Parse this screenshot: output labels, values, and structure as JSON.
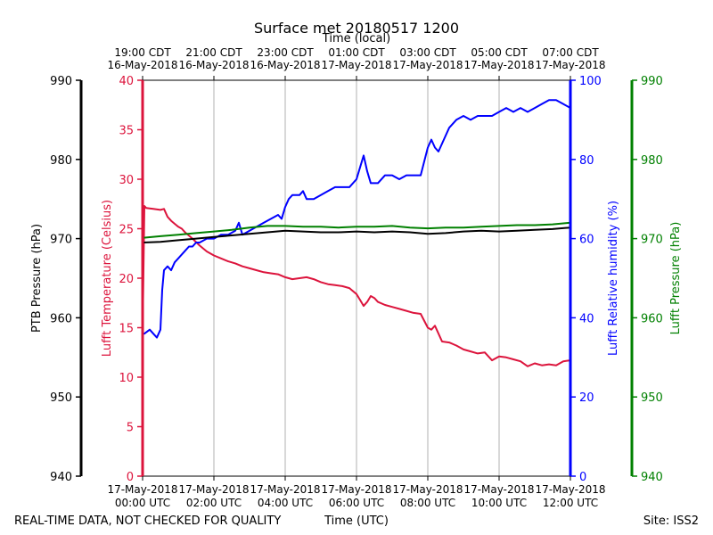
{
  "chart_data": {
    "type": "line",
    "title": "Surface met 20180517 1200",
    "top_axis_label": "Time (local)",
    "top_ticks": [
      {
        "x": 0,
        "line1": "19:00 CDT",
        "line2": "16-May-2018"
      },
      {
        "x": 2,
        "line1": "21:00 CDT",
        "line2": "16-May-2018"
      },
      {
        "x": 4,
        "line1": "23:00 CDT",
        "line2": "16-May-2018"
      },
      {
        "x": 6,
        "line1": "01:00 CDT",
        "line2": "17-May-2018"
      },
      {
        "x": 8,
        "line1": "03:00 CDT",
        "line2": "17-May-2018"
      },
      {
        "x": 10,
        "line1": "05:00 CDT",
        "line2": "17-May-2018"
      },
      {
        "x": 12,
        "line1": "07:00 CDT",
        "line2": "17-May-2018"
      }
    ],
    "bottom_ticks": [
      {
        "x": 0,
        "line1": "17-May-2018",
        "line2": "00:00 UTC"
      },
      {
        "x": 2,
        "line1": "17-May-2018",
        "line2": "02:00 UTC"
      },
      {
        "x": 4,
        "line1": "17-May-2018",
        "line2": "04:00 UTC"
      },
      {
        "x": 6,
        "line1": "17-May-2018",
        "line2": "06:00 UTC"
      },
      {
        "x": 8,
        "line1": "17-May-2018",
        "line2": "08:00 UTC"
      },
      {
        "x": 10,
        "line1": "17-May-2018",
        "line2": "10:00 UTC"
      },
      {
        "x": 12,
        "line1": "17-May-2018",
        "line2": "12:00 UTC"
      }
    ],
    "xlabel": "Time (UTC)",
    "xlim": [
      0,
      12
    ],
    "footer_left": "REAL-TIME DATA, NOT CHECKED FOR QUALITY",
    "footer_right": "Site: ISS2",
    "grid": "vertical",
    "axes": {
      "ptb": {
        "label": "PTB Pressure (hPa)",
        "color": "#000000",
        "ylim": [
          940,
          990
        ],
        "ticks": [
          "940",
          "950",
          "960",
          "970",
          "980",
          "990"
        ]
      },
      "temp": {
        "label": "Lufft Temperature (Celsius)",
        "color": "#dc143c",
        "ylim": [
          0,
          40
        ],
        "ticks": [
          "0",
          "5",
          "10",
          "15",
          "20",
          "25",
          "30",
          "35",
          "40"
        ]
      },
      "rh": {
        "label": "Lufft Relative humidity (%)",
        "color": "#0000ff",
        "ylim": [
          0,
          100
        ],
        "ticks": [
          "0",
          "20",
          "40",
          "60",
          "80",
          "100"
        ]
      },
      "lufft_p": {
        "label": "Lufft Pressure (hPa)",
        "color": "#008000",
        "ylim": [
          940,
          990
        ],
        "ticks": [
          "940",
          "950",
          "960",
          "970",
          "980",
          "990"
        ]
      }
    },
    "series": [
      {
        "name": "Lufft Temperature",
        "axis": "temp",
        "color": "#dc143c",
        "x": [
          0,
          0.05,
          0.1,
          0.3,
          0.5,
          0.6,
          0.7,
          0.8,
          0.9,
          1.0,
          1.1,
          1.2,
          1.4,
          1.6,
          1.8,
          2.0,
          2.2,
          2.4,
          2.6,
          2.8,
          3.0,
          3.2,
          3.4,
          3.6,
          3.8,
          4.0,
          4.2,
          4.4,
          4.6,
          4.8,
          5.0,
          5.2,
          5.4,
          5.6,
          5.8,
          6.0,
          6.1,
          6.2,
          6.3,
          6.4,
          6.5,
          6.6,
          6.8,
          7.0,
          7.2,
          7.4,
          7.6,
          7.8,
          8.0,
          8.1,
          8.2,
          8.4,
          8.6,
          8.8,
          9.0,
          9.2,
          9.4,
          9.6,
          9.8,
          10.0,
          10.2,
          10.4,
          10.6,
          10.8,
          11.0,
          11.2,
          11.4,
          11.6,
          11.8,
          12.0
        ],
        "y": [
          14.5,
          27.3,
          27.1,
          27.0,
          26.9,
          27.0,
          26.2,
          25.8,
          25.5,
          25.2,
          25.0,
          24.6,
          24.0,
          23.3,
          22.7,
          22.3,
          22.0,
          21.7,
          21.5,
          21.2,
          21.0,
          20.8,
          20.6,
          20.5,
          20.4,
          20.1,
          19.9,
          20.0,
          20.1,
          19.9,
          19.6,
          19.4,
          19.3,
          19.2,
          19.0,
          18.4,
          17.8,
          17.2,
          17.6,
          18.2,
          18.0,
          17.6,
          17.3,
          17.1,
          16.9,
          16.7,
          16.5,
          16.4,
          15.0,
          14.8,
          15.2,
          13.6,
          13.5,
          13.2,
          12.8,
          12.6,
          12.4,
          12.5,
          11.7,
          12.1,
          12.0,
          11.8,
          11.6,
          11.1,
          11.4,
          11.2,
          11.3,
          11.2,
          11.6,
          11.7
        ]
      },
      {
        "name": "Lufft Relative humidity",
        "axis": "rh",
        "color": "#0000ff",
        "x": [
          0,
          0.05,
          0.2,
          0.3,
          0.4,
          0.45,
          0.5,
          0.55,
          0.6,
          0.7,
          0.8,
          0.9,
          1.0,
          1.2,
          1.3,
          1.4,
          1.5,
          1.6,
          1.8,
          2.0,
          2.2,
          2.4,
          2.6,
          2.7,
          2.8,
          3.0,
          3.2,
          3.4,
          3.6,
          3.8,
          3.9,
          4.0,
          4.1,
          4.2,
          4.4,
          4.5,
          4.6,
          4.8,
          5.0,
          5.2,
          5.4,
          5.6,
          5.8,
          6.0,
          6.1,
          6.2,
          6.3,
          6.4,
          6.6,
          6.8,
          7.0,
          7.2,
          7.4,
          7.6,
          7.8,
          8.0,
          8.1,
          8.2,
          8.3,
          8.4,
          8.6,
          8.8,
          9.0,
          9.2,
          9.4,
          9.6,
          9.8,
          10.0,
          10.2,
          10.4,
          10.6,
          10.8,
          11.0,
          11.2,
          11.4,
          11.6,
          11.8,
          12.0
        ],
        "y": [
          36,
          36,
          37,
          36,
          35,
          36,
          37,
          47,
          52,
          53,
          52,
          54,
          55,
          57,
          58,
          58,
          59,
          59,
          60,
          60,
          61,
          61,
          62,
          64,
          61,
          62,
          63,
          64,
          65,
          66,
          65,
          68,
          70,
          71,
          71,
          72,
          70,
          70,
          71,
          72,
          73,
          73,
          73,
          75,
          78,
          81,
          77,
          74,
          74,
          76,
          76,
          75,
          76,
          76,
          76,
          83,
          85,
          83,
          82,
          84,
          88,
          90,
          91,
          90,
          91,
          91,
          91,
          92,
          93,
          92,
          93,
          92,
          93,
          94,
          95,
          95,
          94,
          93
        ]
      },
      {
        "name": "Lufft Pressure",
        "axis": "lufft_p",
        "color": "#008000",
        "x": [
          0,
          0.5,
          1.0,
          1.5,
          2.0,
          2.5,
          3.0,
          3.5,
          4.0,
          4.5,
          5.0,
          5.5,
          6.0,
          6.5,
          7.0,
          7.5,
          8.0,
          8.5,
          9.0,
          9.5,
          10.0,
          10.5,
          11.0,
          11.5,
          12.0
        ],
        "y": [
          970.1,
          970.3,
          970.5,
          970.7,
          970.9,
          971.1,
          971.4,
          971.6,
          971.6,
          971.5,
          971.5,
          971.4,
          971.5,
          971.5,
          971.6,
          971.4,
          971.3,
          971.4,
          971.4,
          971.5,
          971.6,
          971.7,
          971.7,
          971.8,
          972.0
        ]
      },
      {
        "name": "PTB Pressure",
        "axis": "ptb",
        "color": "#000000",
        "x": [
          0,
          0.5,
          1.0,
          1.5,
          2.0,
          2.5,
          3.0,
          3.5,
          4.0,
          4.5,
          5.0,
          5.5,
          6.0,
          6.5,
          7.0,
          7.5,
          8.0,
          8.5,
          9.0,
          9.5,
          10.0,
          10.5,
          11.0,
          11.5,
          12.0
        ],
        "y": [
          969.5,
          969.6,
          969.8,
          970.0,
          970.2,
          970.4,
          970.6,
          970.8,
          971.0,
          970.9,
          970.8,
          970.8,
          970.9,
          970.8,
          970.9,
          970.8,
          970.6,
          970.7,
          970.9,
          971.0,
          970.9,
          971.0,
          971.1,
          971.2,
          971.4
        ]
      }
    ]
  }
}
